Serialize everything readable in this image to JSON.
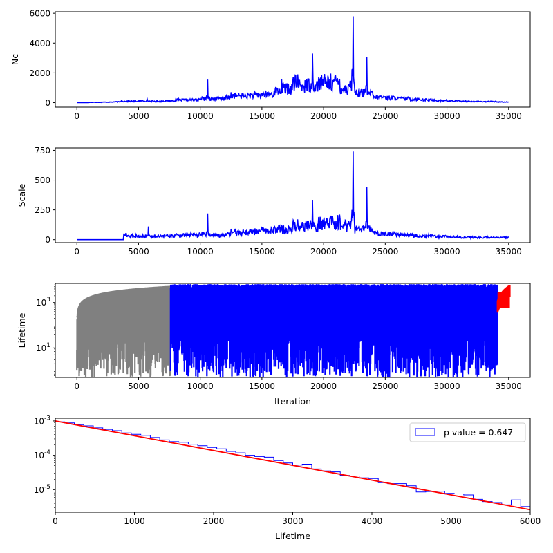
{
  "chart_data": [
    {
      "type": "line",
      "title": "",
      "xlabel": "",
      "ylabel": "Nc",
      "xlim": [
        -1750,
        36750
      ],
      "ylim": [
        -300,
        6100
      ],
      "xticks": [
        0,
        5000,
        10000,
        15000,
        20000,
        25000,
        30000,
        35000
      ],
      "xtick_labels": [
        "0",
        "5000",
        "10000",
        "15000",
        "20000",
        "25000",
        "30000",
        "35000"
      ],
      "yticks": [
        0,
        2000,
        4000,
        6000
      ],
      "ytick_labels": [
        "0",
        "2000",
        "4000",
        "6000"
      ],
      "color": "#0000ff",
      "x": [
        0,
        1000,
        2000,
        3000,
        3600,
        4000,
        5000,
        5700,
        6000,
        7000,
        8000,
        9000,
        10000,
        10500,
        10600,
        10700,
        11000,
        12000,
        12500,
        13000,
        14000,
        15000,
        16000,
        16600,
        17000,
        17500,
        17900,
        18200,
        18500,
        19000,
        19100,
        19300,
        19600,
        20000,
        20500,
        21000,
        21300,
        21600,
        22000,
        22300,
        22400,
        22500,
        23000,
        23400,
        23500,
        24000,
        25000,
        26000,
        27000,
        28000,
        29000,
        30000,
        31000,
        32000,
        33000,
        34000,
        35000
      ],
      "y": [
        0,
        20,
        40,
        60,
        120,
        100,
        120,
        250,
        100,
        120,
        200,
        200,
        300,
        400,
        1550,
        300,
        300,
        350,
        700,
        500,
        550,
        600,
        800,
        1600,
        1000,
        1400,
        1900,
        1200,
        1500,
        1300,
        3300,
        1200,
        1700,
        1500,
        1600,
        1500,
        1600,
        1000,
        1200,
        2200,
        5800,
        1200,
        700,
        800,
        3050,
        500,
        400,
        350,
        300,
        250,
        200,
        150,
        120,
        100,
        80,
        80,
        50
      ]
    },
    {
      "type": "line",
      "title": "",
      "xlabel": "",
      "ylabel": "Scale",
      "xlim": [
        -1750,
        36750
      ],
      "ylim": [
        -25,
        770
      ],
      "xticks": [
        0,
        5000,
        10000,
        15000,
        20000,
        25000,
        30000,
        35000
      ],
      "xtick_labels": [
        "0",
        "5000",
        "10000",
        "15000",
        "20000",
        "25000",
        "30000",
        "35000"
      ],
      "yticks": [
        0,
        250,
        500,
        750
      ],
      "ytick_labels": [
        "0",
        "250",
        "500",
        "750"
      ],
      "color": "#0000ff",
      "x": [
        0,
        3700,
        3800,
        4000,
        5000,
        5700,
        5800,
        6000,
        7000,
        8000,
        9000,
        10000,
        10500,
        10600,
        10700,
        11000,
        12000,
        12500,
        13000,
        14000,
        15000,
        16000,
        16600,
        17000,
        17500,
        17900,
        18200,
        18500,
        19000,
        19100,
        19300,
        19600,
        20000,
        20500,
        21000,
        21300,
        21600,
        22000,
        22300,
        22400,
        22500,
        23000,
        23400,
        23500,
        24000,
        25000,
        26000,
        27000,
        28000,
        29000,
        30000,
        31000,
        32000,
        33000,
        34000,
        35000
      ],
      "y": [
        0,
        0,
        40,
        55,
        35,
        30,
        110,
        30,
        35,
        40,
        45,
        50,
        60,
        220,
        50,
        40,
        45,
        90,
        70,
        75,
        80,
        100,
        120,
        90,
        130,
        170,
        120,
        140,
        130,
        330,
        120,
        190,
        150,
        170,
        160,
        210,
        130,
        140,
        250,
        740,
        150,
        90,
        100,
        440,
        70,
        60,
        50,
        45,
        40,
        35,
        30,
        25,
        22,
        20,
        20,
        18
      ]
    },
    {
      "type": "line",
      "title": "",
      "xlabel": "Iteration",
      "ylabel": "Lifetime",
      "yscale": "log",
      "xlim": [
        -1750,
        36750
      ],
      "ylim": [
        0.5,
        7000
      ],
      "xticks": [
        0,
        5000,
        10000,
        15000,
        20000,
        25000,
        30000,
        35000
      ],
      "xtick_labels": [
        "0",
        "5000",
        "10000",
        "15000",
        "20000",
        "25000",
        "30000",
        "35000"
      ],
      "yticks": [
        10,
        1000
      ],
      "ytick_labels": [
        "10^1",
        "10^3"
      ],
      "series": [
        {
          "color": "#808080",
          "x_start": 0,
          "x_end": 7600,
          "envelope_max": 5500
        },
        {
          "color": "#0000ff",
          "x_start": 7600,
          "x_end": 34100,
          "envelope_max": 6500
        },
        {
          "color": "#ff0000",
          "x_start": 34100,
          "x_end": 35100,
          "envelope_max": 6000
        }
      ]
    },
    {
      "type": "line",
      "title": "",
      "xlabel": "Lifetime",
      "ylabel": "",
      "yscale": "log",
      "xlim": [
        0,
        6000
      ],
      "ylim": [
        2.2e-06,
        0.0012
      ],
      "xticks": [
        0,
        1000,
        2000,
        3000,
        4000,
        5000,
        6000
      ],
      "xtick_labels": [
        "0",
        "1000",
        "2000",
        "3000",
        "4000",
        "5000",
        "6000"
      ],
      "yticks": [
        0.001,
        0.0001,
        1e-05
      ],
      "ytick_labels": [
        "10^-3",
        "10^-4",
        "10^-5"
      ],
      "legend": {
        "label": "p value = 0.647",
        "placement": "top-right"
      },
      "fit": {
        "color": "#ff0000",
        "x": [
          0,
          6000
        ],
        "y": [
          0.001,
          2.6e-06
        ]
      },
      "histogram": {
        "color": "#0000ff",
        "bin_edges": [
          0,
          120,
          240,
          360,
          480,
          600,
          720,
          840,
          960,
          1080,
          1200,
          1320,
          1440,
          1560,
          1680,
          1800,
          1920,
          2040,
          2160,
          2280,
          2400,
          2520,
          2640,
          2760,
          2880,
          3000,
          3120,
          3240,
          3360,
          3480,
          3600,
          3720,
          3840,
          3960,
          4080,
          4200,
          4320,
          4440,
          4560,
          4680,
          4800,
          4920,
          5040,
          5160,
          5280,
          5400,
          5520,
          5640,
          5760,
          5880,
          6000
        ],
        "values": [
          0.00094,
          0.00088,
          0.00078,
          0.00072,
          0.00063,
          0.00057,
          0.00052,
          0.00045,
          0.00041,
          0.00038,
          0.00033,
          0.00028,
          0.00025,
          0.00024,
          0.00021,
          0.00019,
          0.00017,
          0.000155,
          0.00013,
          0.000118,
          0.0001,
          9.2e-05,
          8.8e-05,
          7e-05,
          6e-05,
          5.2e-05,
          5.5e-05,
          4e-05,
          3.5e-05,
          3.3e-05,
          2.6e-05,
          2.5e-05,
          2.2e-05,
          2.1e-05,
          1.6e-05,
          1.5e-05,
          1.5e-05,
          1.3e-05,
          8.5e-06,
          8.8e-06,
          9e-06,
          7.8e-06,
          7.5e-06,
          7e-06,
          5.2e-06,
          4.5e-06,
          4.2e-06,
          3.6e-06,
          5e-06,
          3.2e-06
        ]
      }
    }
  ]
}
